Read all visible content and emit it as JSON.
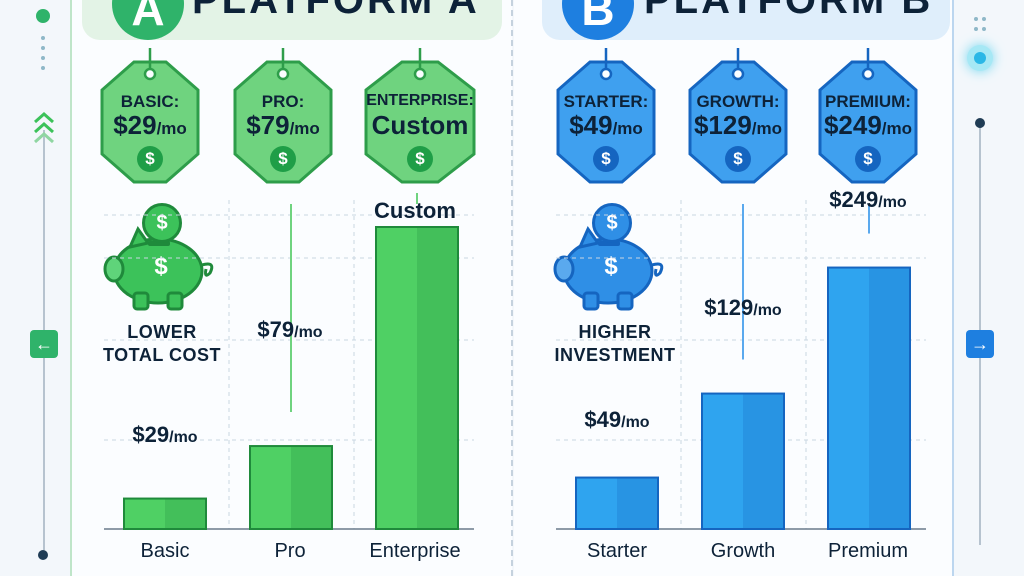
{
  "colors": {
    "green": "#3cc25a",
    "green_dark": "#1f8a3b",
    "blue": "#2f8fe6",
    "blue_dark": "#1565c0",
    "text": "#0d2238"
  },
  "panel_a": {
    "header": "PLATFORM A",
    "badge": "A",
    "tags": [
      {
        "name": "BASIC:",
        "price": "$29",
        "unit": "/mo",
        "coin": "$"
      },
      {
        "name": "PRO:",
        "price": "$79",
        "unit": "/mo",
        "coin": "$"
      },
      {
        "name": "ENTERPRISE:",
        "price": "Custom",
        "unit": "",
        "coin": "$"
      }
    ],
    "piggy_coin": "$",
    "note_lines": [
      "LOWER",
      "TOTAL COST"
    ],
    "icons": [
      "tag-icon",
      "piggy-bank-icon",
      "dollar-coin-icon"
    ]
  },
  "panel_b": {
    "header": "PLATFORM B",
    "badge": "B",
    "tags": [
      {
        "name": "STARTER:",
        "price": "$49",
        "unit": "/mo",
        "coin": "$"
      },
      {
        "name": "GROWTH:",
        "price": "$129",
        "unit": "/mo",
        "coin": "$"
      },
      {
        "name": "PREMIUM:",
        "price": "$249",
        "unit": "/mo",
        "coin": "$"
      }
    ],
    "piggy_coin": "$",
    "note_lines": [
      "HIGHER",
      "INVESTMENT"
    ]
  },
  "nav": {
    "left_arrow": "←",
    "right_arrow": "→"
  },
  "chart_data": [
    {
      "type": "bar",
      "categories": [
        "Basic",
        "Pro",
        "Enterprise"
      ],
      "values": [
        29,
        79,
        null
      ],
      "value_labels": [
        {
          "main": "$29",
          "unit": "/mo"
        },
        {
          "main": "$79",
          "unit": "/mo"
        },
        {
          "main": "Custom",
          "unit": ""
        }
      ],
      "title": "",
      "xlabel": "",
      "ylabel": "",
      "grid": true
    },
    {
      "type": "bar",
      "categories": [
        "Starter",
        "Growth",
        "Premium"
      ],
      "values": [
        49,
        129,
        249
      ],
      "value_labels": [
        {
          "main": "$49",
          "unit": "/mo"
        },
        {
          "main": "$129",
          "unit": "/mo"
        },
        {
          "main": "$249",
          "unit": "/mo"
        }
      ],
      "title": "",
      "xlabel": "",
      "ylabel": "",
      "grid": true
    }
  ]
}
